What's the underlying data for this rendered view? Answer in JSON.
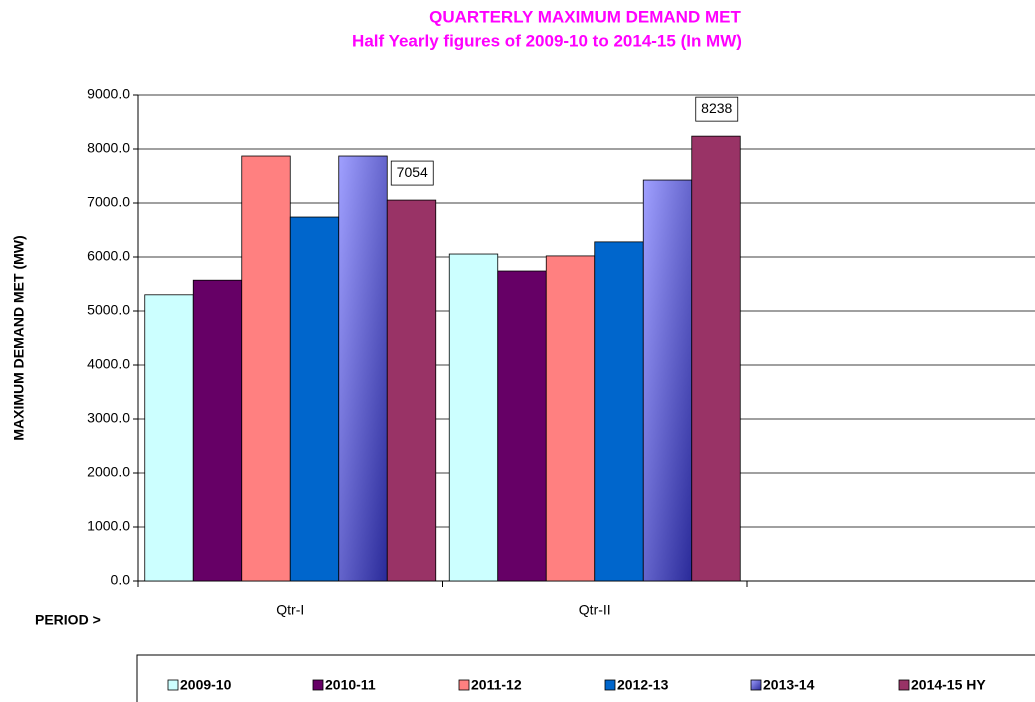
{
  "chart_data": {
    "type": "bar",
    "title": "QUARTERLY MAXIMUM DEMAND MET",
    "subtitle": "Half Yearly figures of 2009-10 to 2014-15  (In MW)",
    "y_label": "MAXIMUM DEMAND MET (MW)",
    "x_label": "PERIOD >",
    "categories": [
      "Qtr-I",
      "Qtr-II"
    ],
    "series": [
      {
        "name": "2009-10",
        "color": "#ccffff",
        "values": [
          5300,
          6055
        ]
      },
      {
        "name": "2010-11",
        "color": "#660066",
        "values": [
          5570,
          5740
        ]
      },
      {
        "name": "2011-12",
        "color": "#ff8080",
        "values": [
          7870,
          6020
        ]
      },
      {
        "name": "2012-13",
        "color": "#0066cc",
        "values": [
          6740,
          6280
        ]
      },
      {
        "name": "2013-14",
        "color": "#9999ff",
        "values": [
          7870,
          7425
        ]
      },
      {
        "name": "2014-15 HY",
        "color": "#993366",
        "values": [
          7054,
          8238
        ],
        "data_labels": true
      }
    ],
    "ylim": [
      0,
      9000
    ],
    "yticks": [
      {
        "value": 0,
        "label": "0.0"
      },
      {
        "value": 1000,
        "label": "1000.0"
      },
      {
        "value": 2000,
        "label": "2000.0"
      },
      {
        "value": 3000,
        "label": "3000.0"
      },
      {
        "value": 4000,
        "label": "4000.0"
      },
      {
        "value": 5000,
        "label": "5000.0"
      },
      {
        "value": 6000,
        "label": "6000.0"
      },
      {
        "value": 7000,
        "label": "7000.0"
      },
      {
        "value": 8000,
        "label": "8000.0"
      },
      {
        "value": 9000,
        "label": "9000.0"
      }
    ],
    "grid": true,
    "legend": "bottom"
  }
}
